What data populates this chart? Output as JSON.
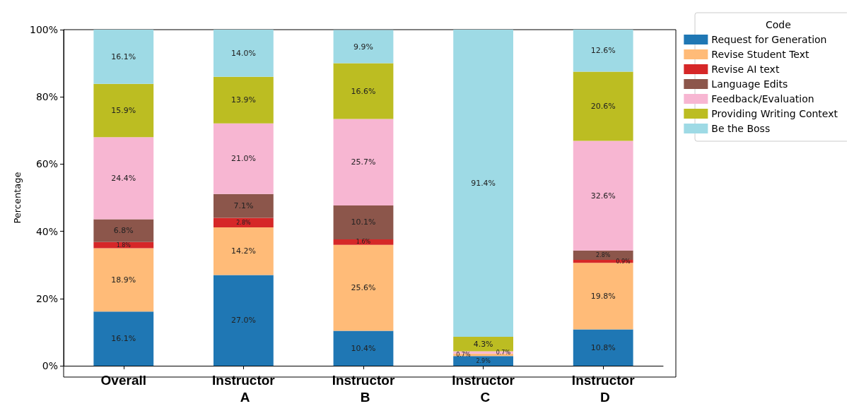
{
  "chart_data": {
    "type": "bar",
    "stacked": true,
    "ylabel": "Percentage",
    "legend_title": "Code",
    "legend": "top right",
    "grid": false,
    "categories": [
      "Overall",
      "Instructor A",
      "Instructor B",
      "Instructor C",
      "Instructor D"
    ],
    "ylim": [
      0,
      100
    ],
    "yticks": [
      {
        "value": 0,
        "label": "0%"
      },
      {
        "value": 20,
        "label": "20%"
      },
      {
        "value": 40,
        "label": "40%"
      },
      {
        "value": 60,
        "label": "60%"
      },
      {
        "value": 80,
        "label": "80%"
      },
      {
        "value": 100,
        "label": "100%"
      }
    ],
    "series": [
      {
        "name": "Request for Generation",
        "color": "#1f77b4",
        "values": [
          16.1,
          27.0,
          10.4,
          2.9,
          10.8
        ],
        "value_labels": [
          "16.1%",
          "27.0%",
          "10.4%",
          "2.9%",
          "10.8%"
        ]
      },
      {
        "name": "Revise Student Text",
        "color": "#ffbb78",
        "values": [
          18.9,
          14.2,
          25.6,
          0.7,
          19.8
        ],
        "value_labels": [
          "18.9%",
          "14.2%",
          "25.6%",
          "0.7%",
          "19.8%"
        ]
      },
      {
        "name": "Revise AI text",
        "color": "#d62728",
        "values": [
          1.8,
          2.8,
          1.6,
          0,
          0.9
        ],
        "value_labels": [
          "1.8%",
          "2.8%",
          "1.6%",
          null,
          "0.9%"
        ]
      },
      {
        "name": "Language Edits",
        "color": "#8c564b",
        "values": [
          6.8,
          7.1,
          10.1,
          0,
          2.8
        ],
        "value_labels": [
          "6.8%",
          "7.1%",
          "10.1%",
          null,
          "2.8%"
        ]
      },
      {
        "name": "Feedback/Evaluation",
        "color": "#f7b6d2",
        "values": [
          24.4,
          21.0,
          25.7,
          0.7,
          32.6
        ],
        "value_labels": [
          "24.4%",
          "21.0%",
          "25.7%",
          "0.7%",
          "32.6%"
        ]
      },
      {
        "name": "Providing Writing Context",
        "color": "#bcbd22",
        "values": [
          15.9,
          13.9,
          16.6,
          4.3,
          20.6
        ],
        "value_labels": [
          "15.9%",
          "13.9%",
          "16.6%",
          "4.3%",
          "20.6%"
        ]
      },
      {
        "name": "Be the Boss",
        "color": "#9edae5",
        "values": [
          16.1,
          14.0,
          9.9,
          91.4,
          12.6
        ],
        "value_labels": [
          "16.1%",
          "14.0%",
          "9.9%",
          "91.4%",
          "12.6%"
        ]
      }
    ]
  }
}
